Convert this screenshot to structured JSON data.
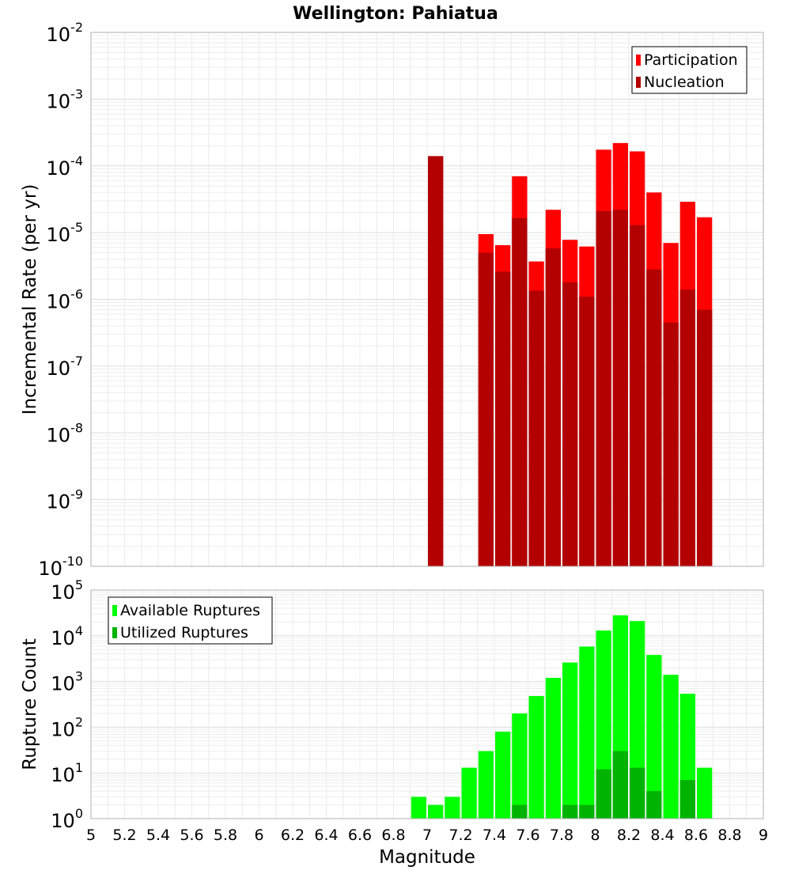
{
  "chart_data": {
    "title": "Wellington: Pahiatua",
    "xlabel": "Magnitude",
    "xlim": [
      5,
      9
    ],
    "x_ticks": [
      "5",
      "5.2",
      "5.4",
      "5.6",
      "5.8",
      "6",
      "6.2",
      "6.4",
      "6.6",
      "6.8",
      "7",
      "7.2",
      "7.4",
      "7.6",
      "7.8",
      "8",
      "8.2",
      "8.4",
      "8.6",
      "8.8",
      "9"
    ],
    "bin_width": 0.1,
    "grid": true,
    "panels": [
      {
        "type": "bar",
        "scale": "log",
        "ylabel": "Incremental Rate (per yr)",
        "ylim_exponents": [
          -10,
          -2
        ],
        "legend_position": "top-right",
        "series": [
          {
            "name": "Participation",
            "color": "#ff0000",
            "x": [
              7.05,
              7.35,
              7.45,
              7.55,
              7.65,
              7.75,
              7.85,
              7.95,
              8.05,
              8.15,
              8.25,
              8.35,
              8.45,
              8.55,
              8.65
            ],
            "values": [
              0.00014,
              9.5e-06,
              6.5e-06,
              7e-05,
              3.7e-06,
              2.2e-05,
              7.8e-06,
              6.2e-06,
              0.000175,
              0.00022,
              0.000165,
              4e-05,
              7e-06,
              2.9e-05,
              1.7e-05
            ]
          },
          {
            "name": "Nucleation",
            "color": "#b30000",
            "x": [
              7.05,
              7.35,
              7.45,
              7.55,
              7.65,
              7.75,
              7.85,
              7.95,
              8.05,
              8.15,
              8.25,
              8.35,
              8.45,
              8.55,
              8.65
            ],
            "values": [
              0.00014,
              5e-06,
              2.6e-06,
              1.65e-05,
              1.35e-06,
              5.8e-06,
              1.8e-06,
              1.1e-06,
              2.1e-05,
              2.2e-05,
              1.3e-05,
              2.8e-06,
              4.5e-07,
              1.4e-06,
              7e-07
            ]
          }
        ]
      },
      {
        "type": "bar",
        "scale": "log",
        "ylabel": "Rupture Count",
        "ylim_exponents": [
          0,
          5
        ],
        "legend_position": "top-left",
        "series": [
          {
            "name": "Available Ruptures",
            "color": "#00ff00",
            "x": [
              6.95,
              7.05,
              7.15,
              7.25,
              7.35,
              7.45,
              7.55,
              7.65,
              7.75,
              7.85,
              7.95,
              8.05,
              8.15,
              8.25,
              8.35,
              8.45,
              8.55,
              8.65
            ],
            "values": [
              3,
              2,
              3,
              13,
              30,
              80,
              200,
              480,
              1200,
              2600,
              5800,
              13000,
              28000,
              21000,
              3800,
              1400,
              540,
              13
            ]
          },
          {
            "name": "Utilized Ruptures",
            "color": "#00b300",
            "x": [
              7.05,
              7.35,
              7.45,
              7.55,
              7.65,
              7.75,
              7.85,
              7.95,
              8.05,
              8.15,
              8.25,
              8.35,
              8.45,
              8.55,
              8.65
            ],
            "values": [
              1,
              1,
              1,
              2,
              1,
              1,
              2,
              2,
              12,
              30,
              13,
              4,
              1,
              7,
              1
            ]
          }
        ]
      }
    ]
  }
}
